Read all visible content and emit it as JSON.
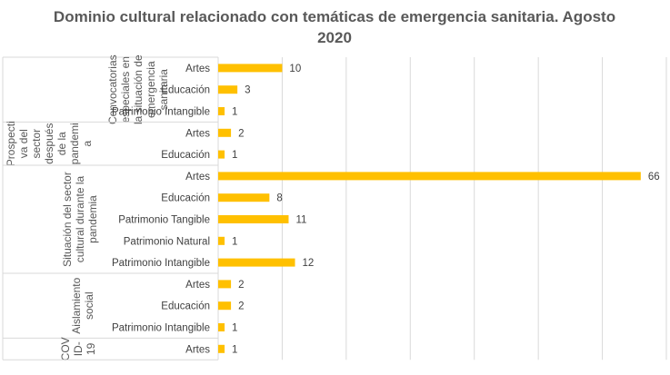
{
  "chart_data": {
    "type": "bar",
    "orientation": "horizontal",
    "title_lines": [
      "Dominio cultural relacionado con temáticas de emergencia sanitaria. Agosto",
      "2020"
    ],
    "xlim": [
      0,
      70
    ],
    "x_gridlines_step": 10,
    "grid": true,
    "bar_color": "#FFC000",
    "groups": [
      {
        "label_lines": [
          "Convocatorias",
          "especiales en",
          "la situación de",
          "emergencia",
          "sanitaria"
        ],
        "categories": [
          "Artes",
          "Educación",
          "Patrimonio Intangible"
        ],
        "values": [
          10,
          3,
          1
        ]
      },
      {
        "label_lines": [
          "Prospecti",
          "va del",
          "sector",
          "después",
          "de la",
          "pandemi",
          "a"
        ],
        "categories": [
          "Artes",
          "Educación"
        ],
        "values": [
          2,
          1
        ]
      },
      {
        "label_lines": [
          "Situación del sector",
          "cultural durante la",
          "pandemia"
        ],
        "categories": [
          "Artes",
          "Educación",
          "Patrimonio Tangible",
          "Patrimonio Natural",
          "Patrimonio Intangible"
        ],
        "values": [
          66,
          8,
          11,
          1,
          12
        ]
      },
      {
        "label_lines": [
          "Aislamiento",
          "social"
        ],
        "categories": [
          "Artes",
          "Educación",
          "Patrimonio Intangible"
        ],
        "values": [
          2,
          2,
          1
        ]
      },
      {
        "label_lines": [
          "COV",
          "ID-",
          "19"
        ],
        "categories": [
          "Artes"
        ],
        "values": [
          1
        ]
      }
    ]
  }
}
